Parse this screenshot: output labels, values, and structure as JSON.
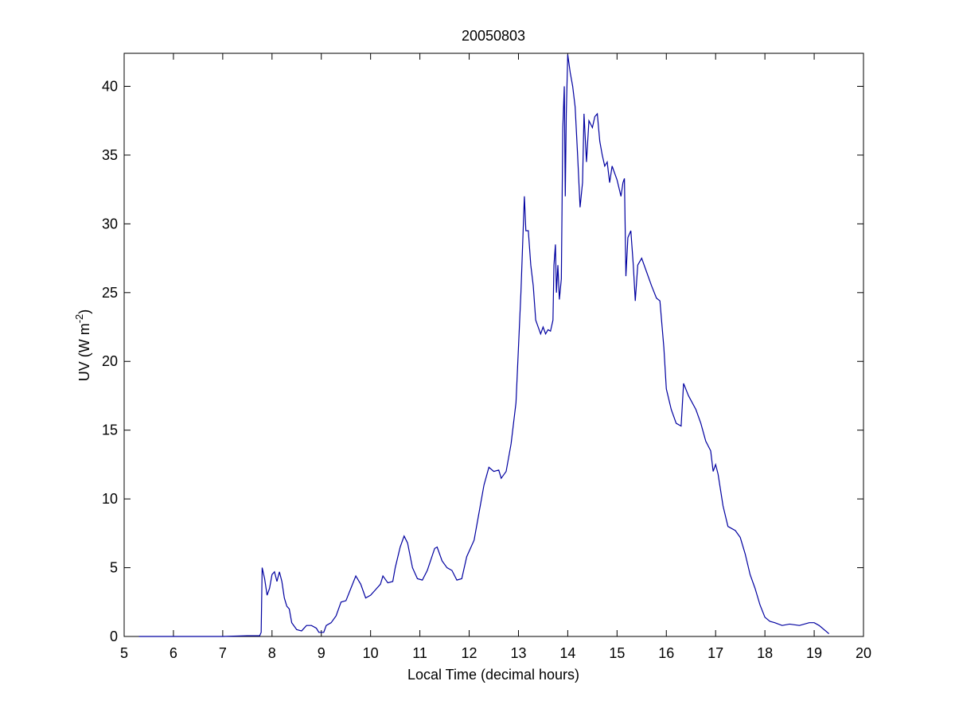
{
  "chart_data": {
    "type": "line",
    "title": "20050803",
    "xlabel": "Local Time (decimal hours)",
    "ylabel": {
      "text": "UV (W m",
      "sup": "-2",
      "end": ")"
    },
    "xlim": [
      5,
      20
    ],
    "xticks": [
      5,
      6,
      7,
      8,
      9,
      10,
      11,
      12,
      13,
      14,
      15,
      16,
      17,
      18,
      19,
      20
    ],
    "ylim": [
      0,
      42.4
    ],
    "yticks": [
      0,
      5,
      10,
      15,
      20,
      25,
      30,
      35,
      40
    ],
    "series": [
      {
        "color": "#0000a0",
        "x": [
          5.3,
          6,
          7,
          7.5,
          7.75,
          7.78,
          7.8,
          7.85,
          7.9,
          7.95,
          8.0,
          8.05,
          8.1,
          8.15,
          8.2,
          8.25,
          8.3,
          8.35,
          8.4,
          8.5,
          8.6,
          8.7,
          8.8,
          8.9,
          8.95,
          9.05,
          9.1,
          9.2,
          9.3,
          9.4,
          9.5,
          9.6,
          9.7,
          9.8,
          9.9,
          10.0,
          10.1,
          10.2,
          10.25,
          10.35,
          10.45,
          10.5,
          10.6,
          10.68,
          10.75,
          10.85,
          10.95,
          11.05,
          11.15,
          11.3,
          11.35,
          11.45,
          11.55,
          11.65,
          11.75,
          11.85,
          11.95,
          12.1,
          12.2,
          12.3,
          12.4,
          12.5,
          12.6,
          12.65,
          12.75,
          12.85,
          12.95,
          13.05,
          13.08,
          13.12,
          13.15,
          13.2,
          13.25,
          13.3,
          13.35,
          13.4,
          13.45,
          13.5,
          13.55,
          13.6,
          13.65,
          13.7,
          13.72,
          13.75,
          13.77,
          13.8,
          13.83,
          13.87,
          13.9,
          13.93,
          13.95,
          13.97,
          14.0,
          14.05,
          14.1,
          14.15,
          14.2,
          14.25,
          14.3,
          14.33,
          14.38,
          14.43,
          14.5,
          14.55,
          14.6,
          14.65,
          14.7,
          14.75,
          14.8,
          14.85,
          14.9,
          15.0,
          15.08,
          15.12,
          15.15,
          15.18,
          15.22,
          15.28,
          15.33,
          15.37,
          15.42,
          15.5,
          15.6,
          15.7,
          15.8,
          15.87,
          15.95,
          16.0,
          16.1,
          16.2,
          16.3,
          16.35,
          16.45,
          16.6,
          16.7,
          16.8,
          16.9,
          16.95,
          17.0,
          17.05,
          17.15,
          17.25,
          17.4,
          17.5,
          17.6,
          17.7,
          17.8,
          17.9,
          18.0,
          18.1,
          18.2,
          18.35,
          18.5,
          18.7,
          18.9,
          19.0,
          19.1,
          19.3
        ],
        "values": [
          0,
          0,
          0,
          0.05,
          0.05,
          0.3,
          5.0,
          4.2,
          3.0,
          3.5,
          4.5,
          4.7,
          4.0,
          4.7,
          4.0,
          2.8,
          2.2,
          2.0,
          1.0,
          0.5,
          0.4,
          0.8,
          0.8,
          0.6,
          0.3,
          0.3,
          0.8,
          1.0,
          1.5,
          2.5,
          2.6,
          3.5,
          4.4,
          3.8,
          2.8,
          3.0,
          3.4,
          3.8,
          4.4,
          3.9,
          4.0,
          5.0,
          6.5,
          7.3,
          6.8,
          5.0,
          4.2,
          4.1,
          4.8,
          6.4,
          6.5,
          5.5,
          5.0,
          4.8,
          4.1,
          4.2,
          5.8,
          7.0,
          9.0,
          11.0,
          12.3,
          12.0,
          12.1,
          11.5,
          12.0,
          14.0,
          17.0,
          25.0,
          28.0,
          32.0,
          29.5,
          29.5,
          27.0,
          25.5,
          23.0,
          22.5,
          22.0,
          22.5,
          22.0,
          22.3,
          22.2,
          23.0,
          27.0,
          28.5,
          25.0,
          27.0,
          24.5,
          26.0,
          37.0,
          40.0,
          32.0,
          38.0,
          42.3,
          41.0,
          40.0,
          38.5,
          35.0,
          31.2,
          33.0,
          38.0,
          34.5,
          37.5,
          37.0,
          37.8,
          38.0,
          36.0,
          35.0,
          34.2,
          34.5,
          33.0,
          34.2,
          33.2,
          32.0,
          33.0,
          33.3,
          26.2,
          29.0,
          29.5,
          27.0,
          24.4,
          27.0,
          27.5,
          26.5,
          25.5,
          24.6,
          24.4,
          21.0,
          18.0,
          16.5,
          15.5,
          15.3,
          18.4,
          17.5,
          16.5,
          15.5,
          14.2,
          13.5,
          12.0,
          12.5,
          11.8,
          9.5,
          8.0,
          7.7,
          7.2,
          6.0,
          4.5,
          3.5,
          2.3,
          1.4,
          1.1,
          1.0,
          0.8,
          0.9,
          0.8,
          1.0,
          1.0,
          0.8,
          0.2
        ]
      }
    ]
  }
}
